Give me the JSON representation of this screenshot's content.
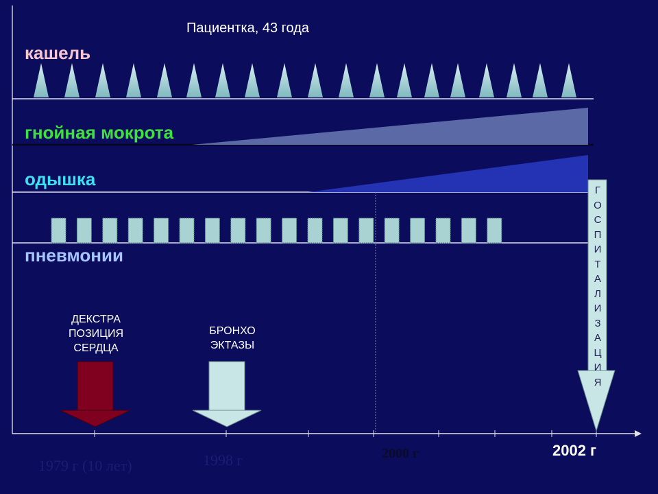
{
  "header": {
    "title": "Пациентка, 43 года"
  },
  "rows": [
    {
      "label": "кашель"
    },
    {
      "label": "гнойная мокрота"
    },
    {
      "label": "одышка"
    },
    {
      "label": "пневмонии"
    }
  ],
  "annotations": [
    {
      "lines": [
        "ДЕКСТРА",
        "ПОЗИЦИЯ",
        "СЕРДЦА"
      ]
    },
    {
      "lines": [
        "БРОНХО",
        "ЭКТАЗЫ"
      ]
    },
    {
      "text": "ГОСПИТАЛИЗАЦИЯ"
    }
  ],
  "axis": {
    "labels": [
      "1979 г (10 лет)",
      "1998 г",
      "2000 г",
      "2002 г"
    ]
  }
}
